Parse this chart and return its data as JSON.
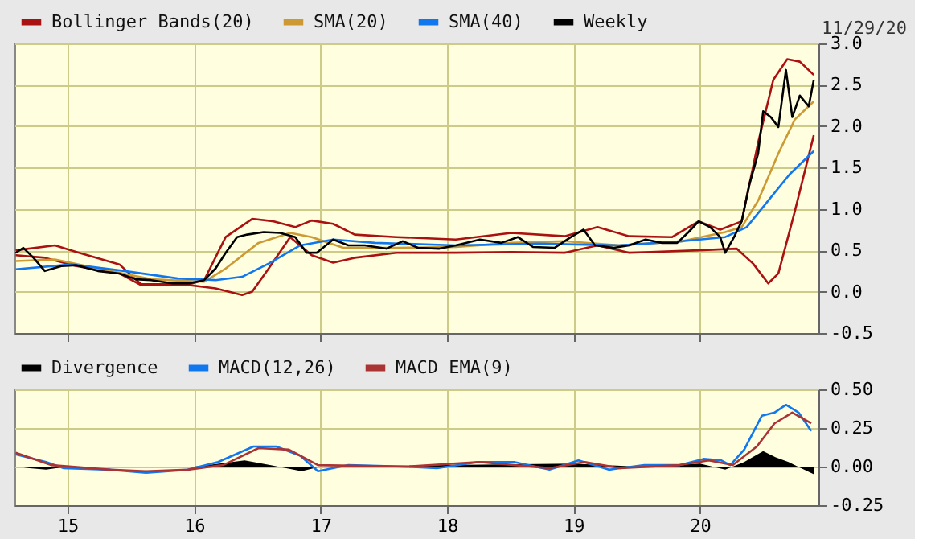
{
  "chart_data": [
    {
      "type": "line",
      "annotations": [
        "11/29/20"
      ],
      "legend": "top left",
      "grid": true,
      "tick_labels": "y",
      "xlim": [
        2014.58,
        2020.937
      ],
      "ylim": [
        -0.5,
        3.0
      ],
      "xticks": [
        {
          "value": 2015,
          "label": null
        },
        {
          "value": 2016,
          "label": null
        },
        {
          "value": 2017,
          "label": null
        },
        {
          "value": 2018,
          "label": null
        },
        {
          "value": 2019,
          "label": null
        },
        {
          "value": 2020,
          "label": null
        }
      ],
      "yticks": [
        {
          "value": -0.5,
          "label": "-0.5"
        },
        {
          "value": 0,
          "label": "0.0"
        },
        {
          "value": 0.5,
          "label": "0.5"
        },
        {
          "value": 1,
          "label": "1.0"
        },
        {
          "value": 1.5,
          "label": "1.5"
        },
        {
          "value": 2,
          "label": "2.0"
        },
        {
          "value": 2.5,
          "label": "2.5"
        },
        {
          "value": 3,
          "label": "3.0"
        }
      ],
      "series": [
        {
          "name": "Bollinger Bands(20)",
          "color": "#aa1111",
          "x": [
            2014.59,
            2014.9,
            2015.07,
            2015.41,
            2015.58,
            2015.96,
            2016.08,
            2016.25,
            2016.46,
            2016.63,
            2016.8,
            2016.93,
            2017.1,
            2017.27,
            2017.6,
            2018.07,
            2018.51,
            2018.93,
            2019.19,
            2019.44,
            2019.78,
            2019.99,
            2020.16,
            2020.33,
            2020.46,
            2020.58,
            2020.69,
            2020.79,
            2020.9
          ],
          "values": [
            0.5,
            0.56,
            0.48,
            0.33,
            0.09,
            0.09,
            0.14,
            0.66,
            0.88,
            0.85,
            0.78,
            0.86,
            0.82,
            0.69,
            0.66,
            0.63,
            0.71,
            0.67,
            0.78,
            0.67,
            0.66,
            0.85,
            0.75,
            0.85,
            1.8,
            2.56,
            2.81,
            2.78,
            2.62
          ]
        },
        {
          "color": "#aa1111",
          "x": [
            2014.59,
            2014.82,
            2015.07,
            2015.41,
            2015.58,
            2015.96,
            2016.17,
            2016.38,
            2016.46,
            2016.59,
            2016.76,
            2016.93,
            2017.1,
            2017.27,
            2017.6,
            2018.07,
            2018.51,
            2018.93,
            2019.19,
            2019.44,
            2019.99,
            2020.29,
            2020.42,
            2020.54,
            2020.62,
            2020.75,
            2020.9
          ],
          "values": [
            0.44,
            0.41,
            0.31,
            0.22,
            0.08,
            0.08,
            0.04,
            -0.04,
            0.0,
            0.28,
            0.66,
            0.44,
            0.35,
            0.41,
            0.47,
            0.47,
            0.48,
            0.47,
            0.56,
            0.47,
            0.5,
            0.52,
            0.34,
            0.1,
            0.22,
            0.97,
            1.89
          ]
        },
        {
          "name": "SMA(20)",
          "color": "#cc9933",
          "x": [
            2014.59,
            2014.9,
            2015.24,
            2015.66,
            2016.08,
            2016.25,
            2016.51,
            2016.76,
            2016.93,
            2017.18,
            2017.6,
            2018.07,
            2018.51,
            2018.93,
            2019.36,
            2019.86,
            2020.2,
            2020.33,
            2020.46,
            2020.62,
            2020.75,
            2020.9
          ],
          "values": [
            0.37,
            0.39,
            0.28,
            0.15,
            0.12,
            0.28,
            0.59,
            0.71,
            0.66,
            0.53,
            0.53,
            0.54,
            0.59,
            0.61,
            0.56,
            0.61,
            0.72,
            0.78,
            1.1,
            1.67,
            2.08,
            2.3
          ]
        },
        {
          "name": "SMA(40)",
          "color": "#1177ee",
          "x": [
            2014.59,
            2015.03,
            2015.45,
            2015.87,
            2016.17,
            2016.38,
            2016.59,
            2016.84,
            2017.1,
            2017.43,
            2018.07,
            2018.72,
            2019.36,
            2019.86,
            2020.2,
            2020.37,
            2020.54,
            2020.71,
            2020.9
          ],
          "values": [
            0.27,
            0.33,
            0.25,
            0.16,
            0.14,
            0.18,
            0.34,
            0.56,
            0.63,
            0.59,
            0.56,
            0.58,
            0.56,
            0.61,
            0.66,
            0.78,
            1.1,
            1.42,
            1.7
          ]
        },
        {
          "name": "Weekly",
          "color": "#000000",
          "x": [
            2014.59,
            2014.65,
            2014.73,
            2014.82,
            2014.95,
            2015.07,
            2015.24,
            2015.41,
            2015.54,
            2015.66,
            2015.83,
            2015.96,
            2016.08,
            2016.17,
            2016.25,
            2016.34,
            2016.42,
            2016.55,
            2016.68,
            2016.8,
            2016.89,
            2016.97,
            2017.1,
            2017.22,
            2017.35,
            2017.52,
            2017.65,
            2017.77,
            2017.94,
            2018.07,
            2018.26,
            2018.43,
            2018.56,
            2018.68,
            2018.85,
            2018.98,
            2019.08,
            2019.17,
            2019.32,
            2019.44,
            2019.57,
            2019.7,
            2019.82,
            2019.91,
            2019.99,
            2020.08,
            2020.16,
            2020.2,
            2020.27,
            2020.33,
            2020.39,
            2020.46,
            2020.5,
            2020.56,
            2020.62,
            2020.68,
            2020.73,
            2020.79,
            2020.86,
            2020.9
          ],
          "values": [
            0.47,
            0.53,
            0.41,
            0.25,
            0.31,
            0.32,
            0.25,
            0.22,
            0.15,
            0.14,
            0.1,
            0.1,
            0.14,
            0.28,
            0.47,
            0.66,
            0.69,
            0.72,
            0.71,
            0.66,
            0.47,
            0.47,
            0.63,
            0.56,
            0.56,
            0.52,
            0.61,
            0.53,
            0.52,
            0.56,
            0.63,
            0.59,
            0.66,
            0.54,
            0.53,
            0.66,
            0.75,
            0.56,
            0.53,
            0.56,
            0.63,
            0.59,
            0.59,
            0.72,
            0.85,
            0.78,
            0.66,
            0.47,
            0.66,
            0.85,
            1.29,
            1.67,
            2.18,
            2.11,
            1.99,
            2.68,
            2.11,
            2.37,
            2.24,
            2.56
          ]
        }
      ]
    },
    {
      "type": "line",
      "legend": "top left",
      "grid": true,
      "xlim": [
        2014.58,
        2020.937
      ],
      "ylim": [
        -0.25,
        0.5
      ],
      "xticks": [
        {
          "value": 2015,
          "label": "15"
        },
        {
          "value": 2016,
          "label": "16"
        },
        {
          "value": 2017,
          "label": "17"
        },
        {
          "value": 2018,
          "label": "18"
        },
        {
          "value": 2019,
          "label": "19"
        },
        {
          "value": 2020,
          "label": "20"
        }
      ],
      "yticks": [
        {
          "value": -0.25,
          "label": "-0.25"
        },
        {
          "value": 0,
          "label": "0.00"
        },
        {
          "value": 0.25,
          "label": "0.25"
        },
        {
          "value": 0.5,
          "label": "0.50"
        }
      ],
      "series": [
        {
          "name": "Divergence",
          "type": "area",
          "color": "#000000",
          "x": [
            2014.6,
            2014.7,
            2014.83,
            2015.0,
            2016.0,
            2016.2,
            2016.4,
            2016.6,
            2016.85,
            2017.0,
            2018.0,
            2019.0,
            2019.5,
            2020.0,
            2020.2,
            2020.35,
            2020.5,
            2020.6,
            2020.7,
            2020.8,
            2020.9
          ],
          "values": [
            0.0,
            -0.01,
            -0.02,
            0.0,
            0.0,
            0.02,
            0.04,
            0.01,
            -0.03,
            0.0,
            0.01,
            0.02,
            0.0,
            0.02,
            -0.02,
            0.03,
            0.1,
            0.06,
            0.03,
            -0.01,
            -0.05
          ]
        },
        {
          "name": "MACD(12,26)",
          "color": "#1177ee",
          "x": [
            2014.59,
            2014.83,
            2014.97,
            2015.34,
            2015.62,
            2015.95,
            2016.19,
            2016.47,
            2016.65,
            2016.84,
            2016.98,
            2017.22,
            2017.68,
            2017.92,
            2018.25,
            2018.53,
            2018.81,
            2019.04,
            2019.28,
            2019.56,
            2019.84,
            2020.03,
            2020.17,
            2020.24,
            2020.35,
            2020.49,
            2020.59,
            2020.68,
            2020.78,
            2020.88
          ],
          "values": [
            0.08,
            0.03,
            -0.01,
            -0.02,
            -0.04,
            -0.02,
            0.03,
            0.13,
            0.13,
            0.07,
            -0.03,
            0.01,
            0.0,
            -0.01,
            0.03,
            0.03,
            -0.02,
            0.04,
            -0.02,
            0.01,
            0.01,
            0.05,
            0.04,
            0.01,
            0.11,
            0.33,
            0.35,
            0.4,
            0.35,
            0.23
          ]
        },
        {
          "name": "MACD EMA(9)",
          "color": "#aa3333",
          "x": [
            2014.59,
            2014.87,
            2015.34,
            2015.62,
            2015.95,
            2016.23,
            2016.51,
            2016.75,
            2016.98,
            2017.68,
            2018.25,
            2018.81,
            2019.09,
            2019.37,
            2019.84,
            2020.07,
            2020.26,
            2020.45,
            2020.59,
            2020.73,
            2020.88
          ],
          "values": [
            0.09,
            0.01,
            -0.02,
            -0.03,
            -0.02,
            0.01,
            0.12,
            0.11,
            0.01,
            0.0,
            0.03,
            -0.01,
            0.03,
            -0.01,
            0.01,
            0.04,
            0.01,
            0.13,
            0.28,
            0.35,
            0.28
          ]
        }
      ]
    }
  ]
}
